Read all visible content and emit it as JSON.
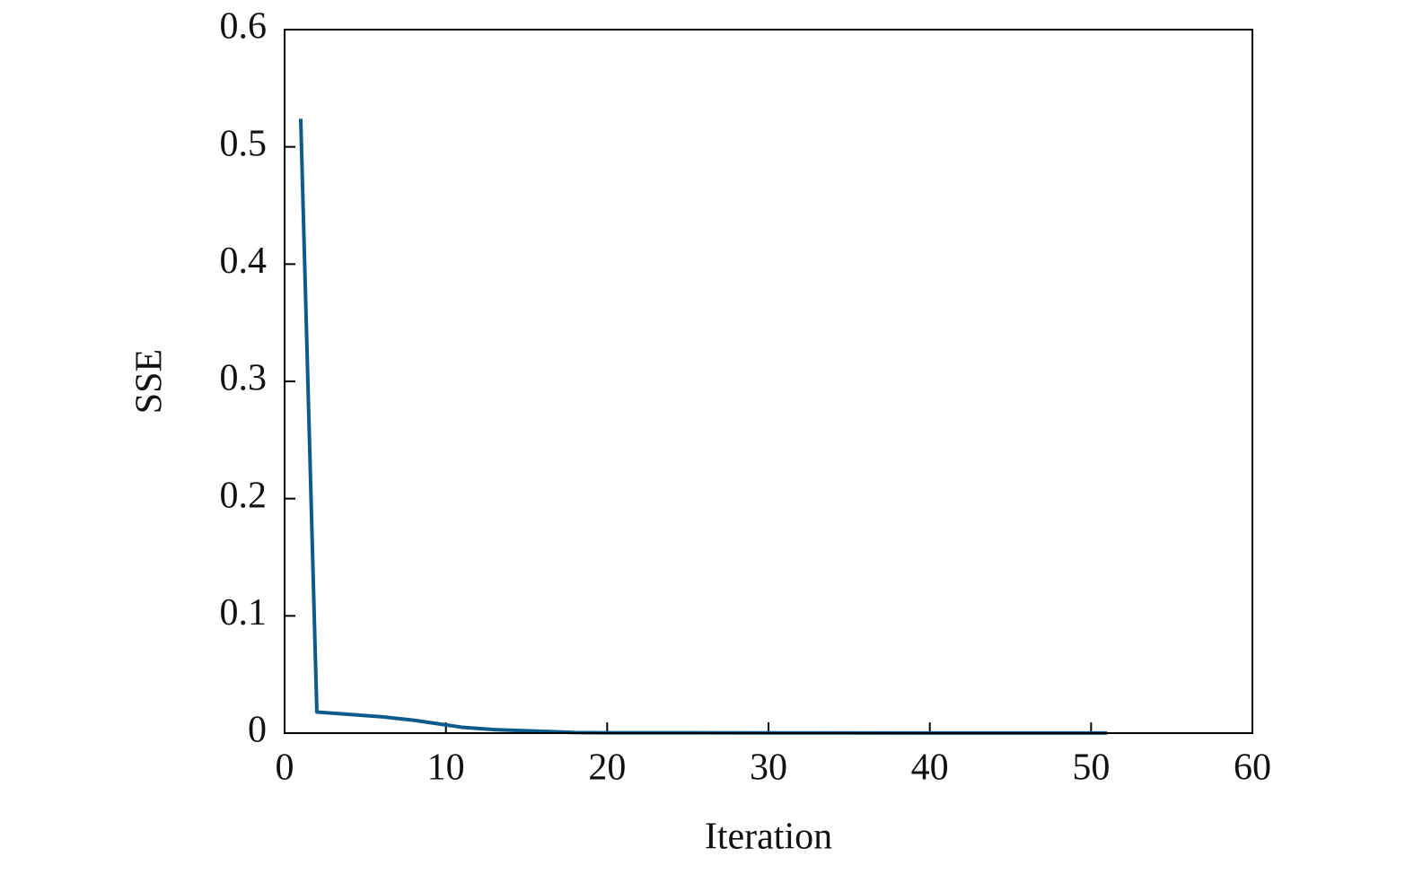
{
  "chart_data": {
    "type": "line",
    "xlabel": "Iteration",
    "ylabel": "SSE",
    "x": [
      1,
      2,
      4,
      6,
      8,
      10,
      11,
      13,
      15,
      18,
      20,
      30,
      40,
      51
    ],
    "series": [
      {
        "name": "SSE",
        "color": "#0d5b8c",
        "values": [
          0.524,
          0.018,
          0.016,
          0.014,
          0.011,
          0.007,
          0.005,
          0.003,
          0.002,
          0.0005,
          0.0003,
          0.0002,
          0.0001,
          0.0001
        ]
      }
    ],
    "xlim": [
      0,
      60
    ],
    "xticks": [
      0,
      10,
      20,
      30,
      40,
      50,
      60
    ],
    "ylim": [
      0,
      0.6
    ],
    "yticks": [
      0,
      0.1,
      0.2,
      0.3,
      0.4,
      0.5,
      0.6
    ],
    "grid": false
  }
}
